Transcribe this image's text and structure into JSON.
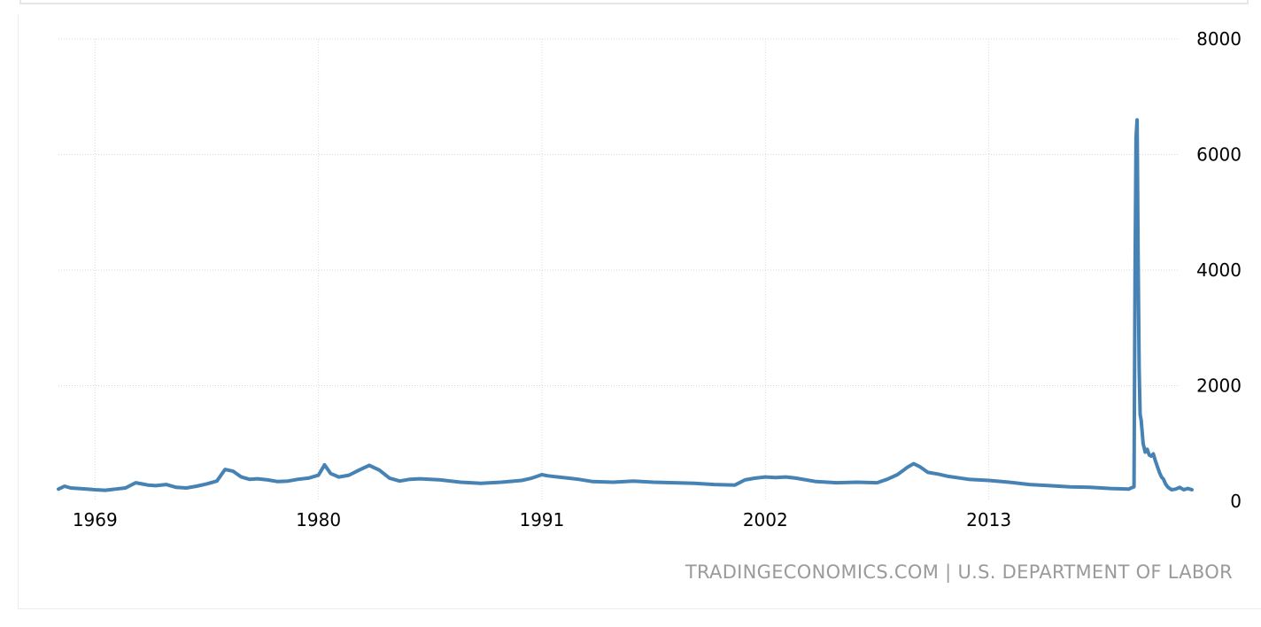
{
  "source": "TRADINGECONOMICS.COM | U.S. DEPARTMENT OF LABOR",
  "colors": {
    "line": "#4682b4",
    "grid": "#d9d9d9",
    "source": "#9a9a9a"
  },
  "chart_data": {
    "type": "line",
    "title": "",
    "xlabel": "",
    "ylabel": "",
    "xlim": [
      1967.2,
      2023.0
    ],
    "ylim": [
      0,
      8000
    ],
    "x_ticks": [
      1969,
      1980,
      1991,
      2002,
      2013
    ],
    "y_ticks": [
      0,
      2000,
      4000,
      6000,
      8000
    ],
    "grid": true,
    "legend": "none",
    "series": [
      {
        "x": [
          1967.2,
          1967.5,
          1967.8,
          1968.2,
          1968.6,
          1969.0,
          1969.5,
          1970.0,
          1970.5,
          1971.0,
          1971.3,
          1971.6,
          1972.0,
          1972.5,
          1973.0,
          1973.5,
          1974.0,
          1974.5,
          1975.0,
          1975.4,
          1975.8,
          1976.2,
          1976.6,
          1977.0,
          1977.5,
          1978.0,
          1978.5,
          1979.0,
          1979.5,
          1980.0,
          1980.3,
          1980.6,
          1981.0,
          1981.5,
          1982.0,
          1982.5,
          1983.0,
          1983.5,
          1984.0,
          1984.5,
          1985.0,
          1986.0,
          1987.0,
          1988.0,
          1989.0,
          1990.0,
          1990.5,
          1991.0,
          1991.3,
          1991.8,
          1992.3,
          1992.8,
          1993.5,
          1994.5,
          1995.5,
          1996.5,
          1997.5,
          1998.5,
          1999.5,
          2000.5,
          2001.0,
          2001.5,
          2002.0,
          2002.5,
          2003.0,
          2003.5,
          2004.5,
          2005.5,
          2006.5,
          2007.5,
          2008.0,
          2008.5,
          2009.0,
          2009.3,
          2009.6,
          2010.0,
          2010.5,
          2011.0,
          2012.0,
          2013.0,
          2014.0,
          2015.0,
          2016.0,
          2017.0,
          2018.0,
          2019.0,
          2019.9,
          2020.0,
          2020.15,
          2020.2,
          2020.25,
          2020.3,
          2020.35,
          2020.4,
          2020.45,
          2020.5,
          2020.6,
          2020.7,
          2020.8,
          2020.9,
          2021.0,
          2021.1,
          2021.2,
          2021.3,
          2021.4,
          2021.5,
          2021.6,
          2021.7,
          2021.8,
          2021.9,
          2022.0,
          2022.2,
          2022.4,
          2022.6,
          2022.8,
          2023.0
        ],
        "values": [
          210,
          260,
          230,
          220,
          210,
          200,
          190,
          210,
          230,
          320,
          300,
          280,
          270,
          290,
          240,
          230,
          260,
          300,
          350,
          550,
          520,
          420,
          380,
          390,
          370,
          340,
          350,
          380,
          400,
          450,
          630,
          480,
          420,
          450,
          540,
          620,
          540,
          400,
          350,
          380,
          390,
          370,
          330,
          310,
          330,
          360,
          400,
          460,
          440,
          420,
          400,
          380,
          340,
          330,
          350,
          330,
          320,
          310,
          290,
          280,
          370,
          400,
          420,
          410,
          420,
          400,
          340,
          320,
          330,
          320,
          380,
          460,
          590,
          650,
          600,
          500,
          470,
          430,
          380,
          360,
          330,
          290,
          270,
          250,
          240,
          220,
          210,
          230,
          250,
          4000,
          6300,
          6600,
          4300,
          2300,
          1500,
          1400,
          1000,
          850,
          900,
          800,
          780,
          820,
          700,
          600,
          500,
          420,
          380,
          300,
          250,
          220,
          200,
          210,
          240,
          200,
          220,
          200
        ]
      }
    ]
  }
}
